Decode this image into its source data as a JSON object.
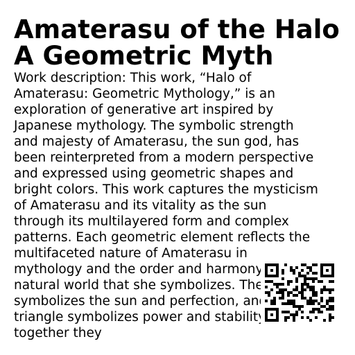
{
  "artwork": {
    "title": "Amaterasu of the Halo A Geometric Myth",
    "description": "Work description: This work, “Halo of Amaterasu: Geometric Mythology,” is an exploration of generative art inspired by Japanese mythology. The symbolic strength and majesty of Amaterasu, the sun god, has been reinterpreted from a modern perspective and expressed using geometric shapes and bright colors. This work captures the mysticism of Amaterasu and its vitality as the sun through its multilayered form and complex patterns. Each geometric element reflects the multifaceted nature of Amaterasu in mythology and the order and harmony of the natural world that she symbolizes. The circle symbolizes the sun and perfection, and the triangle symbolizes power and stability, and together they"
  },
  "qr_code": {
    "icon": "qr-code-icon",
    "color": "#000000"
  }
}
